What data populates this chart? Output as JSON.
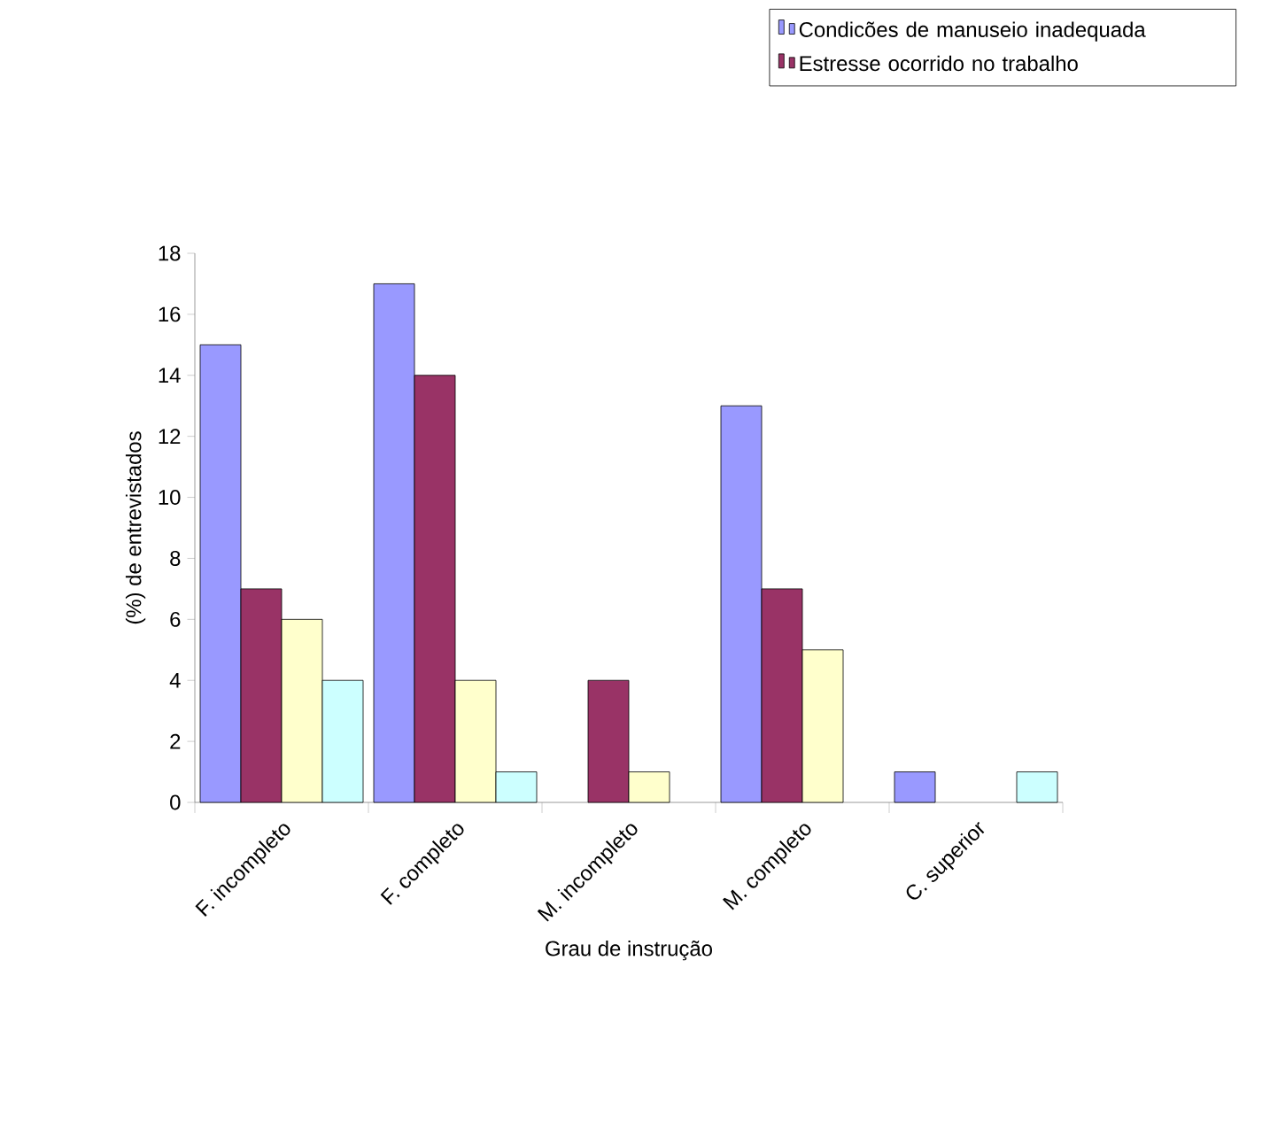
{
  "chart_data": {
    "type": "bar",
    "xlabel": "Grau de instrução",
    "ylabel": "(%) de entrevistados",
    "categories": [
      "F. incompleto",
      "F. completo",
      "M. incompleto",
      "M. completo",
      "C. superior"
    ],
    "series": [
      {
        "name": "Condicões de manuseio inadequada",
        "color": "#9999ff",
        "values": [
          15,
          17,
          null,
          13,
          1
        ]
      },
      {
        "name": "Estresse ocorrido no trabalho",
        "color": "#993366",
        "values": [
          7,
          14,
          4,
          7,
          null
        ]
      },
      {
        "color": "#ffffcc",
        "values": [
          6,
          4,
          1,
          5,
          null
        ]
      },
      {
        "color": "#ccffff",
        "values": [
          4,
          1,
          null,
          null,
          1
        ]
      }
    ],
    "ylim": [
      0,
      18
    ],
    "yticks": [
      0,
      2,
      4,
      6,
      8,
      10,
      12,
      14,
      16,
      18
    ],
    "grid": false,
    "legend": "top right"
  }
}
